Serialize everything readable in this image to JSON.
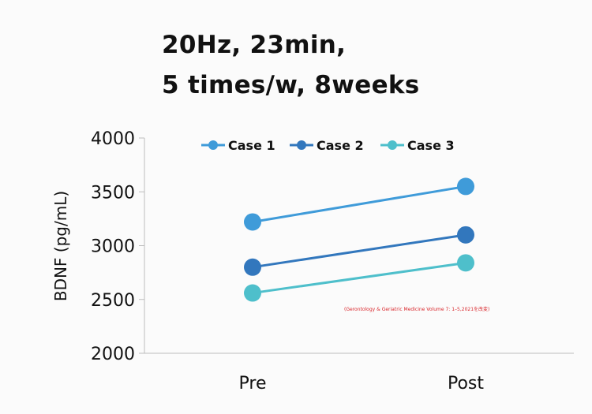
{
  "title_lines": [
    "20Hz, 23min,",
    "5 times/w, 8weeks"
  ],
  "chart_data": {
    "type": "line",
    "categories": [
      "Pre",
      "Post"
    ],
    "ylabel": "BDNF (pg/mL)",
    "xlabel": "",
    "ylim": [
      2000,
      4000
    ],
    "yticks": [
      2000,
      2500,
      3000,
      3500,
      4000
    ],
    "grid": false,
    "legend_position": "top",
    "series": [
      {
        "name": "Case 1",
        "values": [
          3220,
          3550
        ],
        "color": "#3f9bd9"
      },
      {
        "name": "Case 2",
        "values": [
          2800,
          3100
        ],
        "color": "#3277bd"
      },
      {
        "name": "Case 3",
        "values": [
          2560,
          2840
        ],
        "color": "#4ebfcb"
      }
    ],
    "annotation": "(Gerontology & Geriatric Medicine Volume 7: 1–5,2021を改変)"
  }
}
